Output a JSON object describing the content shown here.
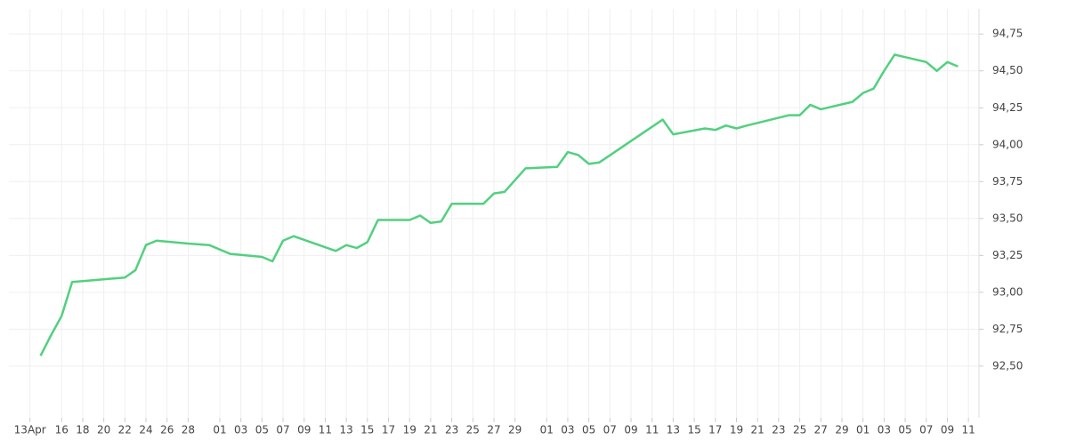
{
  "chart_data": {
    "type": "line",
    "x": [
      "04-14",
      "04-15",
      "04-16",
      "04-17",
      "04-22",
      "04-23",
      "04-24",
      "04-25",
      "04-28",
      "04-30",
      "05-02",
      "05-05",
      "05-06",
      "05-07",
      "05-08",
      "05-12",
      "05-13",
      "05-14",
      "05-15",
      "05-16",
      "05-19",
      "05-20",
      "05-21",
      "05-22",
      "05-23",
      "05-26",
      "05-27",
      "05-28",
      "05-30",
      "06-02",
      "06-03",
      "06-04",
      "06-05",
      "06-06",
      "06-12",
      "06-13",
      "06-16",
      "06-17",
      "06-18",
      "06-19",
      "06-20",
      "06-24",
      "06-25",
      "06-26",
      "06-27",
      "06-30",
      "07-01",
      "07-02",
      "07-03",
      "07-04",
      "07-07",
      "07-08",
      "07-09",
      "07-10"
    ],
    "series": [
      {
        "color": "#52d07f",
        "values": [
          92.57,
          92.71,
          92.84,
          93.07,
          93.1,
          93.15,
          93.32,
          93.35,
          93.33,
          93.32,
          93.26,
          93.24,
          93.21,
          93.35,
          93.38,
          93.28,
          93.32,
          93.3,
          93.34,
          93.49,
          93.49,
          93.52,
          93.47,
          93.48,
          93.6,
          93.6,
          93.67,
          93.68,
          93.84,
          93.85,
          93.95,
          93.93,
          93.87,
          93.88,
          94.17,
          94.07,
          94.11,
          94.1,
          94.13,
          94.11,
          94.13,
          94.2,
          94.2,
          94.27,
          94.24,
          94.29,
          94.35,
          94.38,
          94.5,
          94.61,
          94.56,
          94.5,
          94.56,
          94.53
        ]
      }
    ],
    "xlim": [
      "04-11",
      "07-12"
    ],
    "xticks": [
      {
        "value": "04-13",
        "label": "13Apr"
      },
      {
        "value": "04-16",
        "label": "16"
      },
      {
        "value": "04-18",
        "label": "18"
      },
      {
        "value": "04-20",
        "label": "20"
      },
      {
        "value": "04-22",
        "label": "22"
      },
      {
        "value": "04-24",
        "label": "24"
      },
      {
        "value": "04-26",
        "label": "26"
      },
      {
        "value": "04-28",
        "label": "28"
      },
      {
        "value": "05-01",
        "label": "01"
      },
      {
        "value": "05-03",
        "label": "03"
      },
      {
        "value": "05-05",
        "label": "05"
      },
      {
        "value": "05-07",
        "label": "07"
      },
      {
        "value": "05-09",
        "label": "09"
      },
      {
        "value": "05-11",
        "label": "11"
      },
      {
        "value": "05-13",
        "label": "13"
      },
      {
        "value": "05-15",
        "label": "15"
      },
      {
        "value": "05-17",
        "label": "17"
      },
      {
        "value": "05-19",
        "label": "19"
      },
      {
        "value": "05-21",
        "label": "21"
      },
      {
        "value": "05-23",
        "label": "23"
      },
      {
        "value": "05-25",
        "label": "25"
      },
      {
        "value": "05-27",
        "label": "27"
      },
      {
        "value": "05-29",
        "label": "29"
      },
      {
        "value": "06-01",
        "label": "01"
      },
      {
        "value": "06-03",
        "label": "03"
      },
      {
        "value": "06-05",
        "label": "05"
      },
      {
        "value": "06-07",
        "label": "07"
      },
      {
        "value": "06-09",
        "label": "09"
      },
      {
        "value": "06-11",
        "label": "11"
      },
      {
        "value": "06-13",
        "label": "13"
      },
      {
        "value": "06-15",
        "label": "15"
      },
      {
        "value": "06-17",
        "label": "17"
      },
      {
        "value": "06-19",
        "label": "19"
      },
      {
        "value": "06-21",
        "label": "21"
      },
      {
        "value": "06-23",
        "label": "23"
      },
      {
        "value": "06-25",
        "label": "25"
      },
      {
        "value": "06-27",
        "label": "27"
      },
      {
        "value": "06-29",
        "label": "29"
      },
      {
        "value": "07-01",
        "label": "01"
      },
      {
        "value": "07-03",
        "label": "03"
      },
      {
        "value": "07-05",
        "label": "05"
      },
      {
        "value": "07-07",
        "label": "07"
      },
      {
        "value": "07-09",
        "label": "09"
      },
      {
        "value": "07-11",
        "label": "11"
      }
    ],
    "ylim": [
      92.15,
      94.92
    ],
    "yticks": [
      {
        "value": 92.5,
        "label": "92,50"
      },
      {
        "value": 92.75,
        "label": "92,75"
      },
      {
        "value": 93,
        "label": "93,00"
      },
      {
        "value": 93.25,
        "label": "93,25"
      },
      {
        "value": 93.5,
        "label": "93,50"
      },
      {
        "value": 93.75,
        "label": "93,75"
      },
      {
        "value": 94,
        "label": "94,00"
      },
      {
        "value": 94.25,
        "label": "94,25"
      },
      {
        "value": 94.5,
        "label": "94,50"
      },
      {
        "value": 94.75,
        "label": "94,75"
      }
    ],
    "grid": true
  }
}
